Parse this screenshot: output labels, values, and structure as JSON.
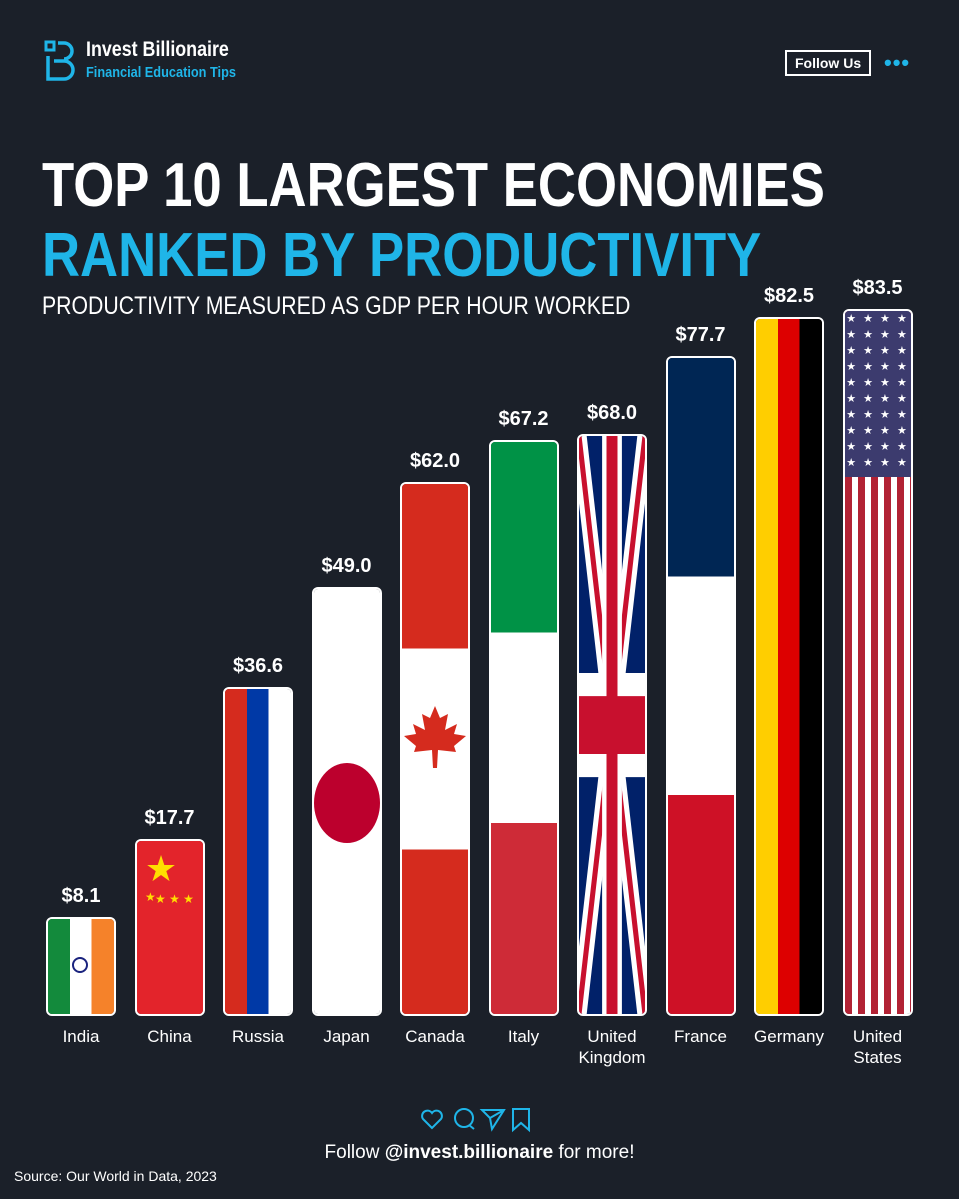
{
  "brand": {
    "name": "Invest Billionaire",
    "tagline": "Financial Education Tips",
    "follow_button": "Follow Us",
    "more_icon": "ellipsis-icon",
    "accent": "#1fb5e8"
  },
  "title_line1": "TOP 10 LARGEST ECONOMIES",
  "title_line2": "RANKED BY PRODUCTIVITY",
  "subtitle": "PRODUCTIVITY MEASURED AS GDP PER HOUR WORKED",
  "chart_data": {
    "type": "bar",
    "title": "TOP 10 LARGEST ECONOMIES RANKED BY PRODUCTIVITY",
    "subtitle": "PRODUCTIVITY MEASURED AS GDP PER HOUR WORKED",
    "categories": [
      "India",
      "China",
      "Russia",
      "Japan",
      "Canada",
      "Italy",
      "United Kingdom",
      "France",
      "Germany",
      "United States"
    ],
    "values": [
      8.1,
      17.7,
      36.6,
      49.0,
      62.0,
      67.2,
      68.0,
      77.7,
      82.5,
      83.5
    ],
    "labels": [
      "$8.1",
      "$17.7",
      "$36.6",
      "$49.0",
      "$62.0",
      "$67.2",
      "$68.0",
      "$77.7",
      "$82.5",
      "$83.5"
    ],
    "fill": "country flags",
    "xlabel": "",
    "ylabel": ""
  },
  "footer": {
    "icons": [
      "heart-icon",
      "comment-icon",
      "send-icon",
      "bookmark-icon"
    ],
    "follow_prefix": "Follow ",
    "handle": "@invest.billionaire",
    "follow_suffix": " for more!",
    "source": "Source: Our World in Data, 2023"
  }
}
